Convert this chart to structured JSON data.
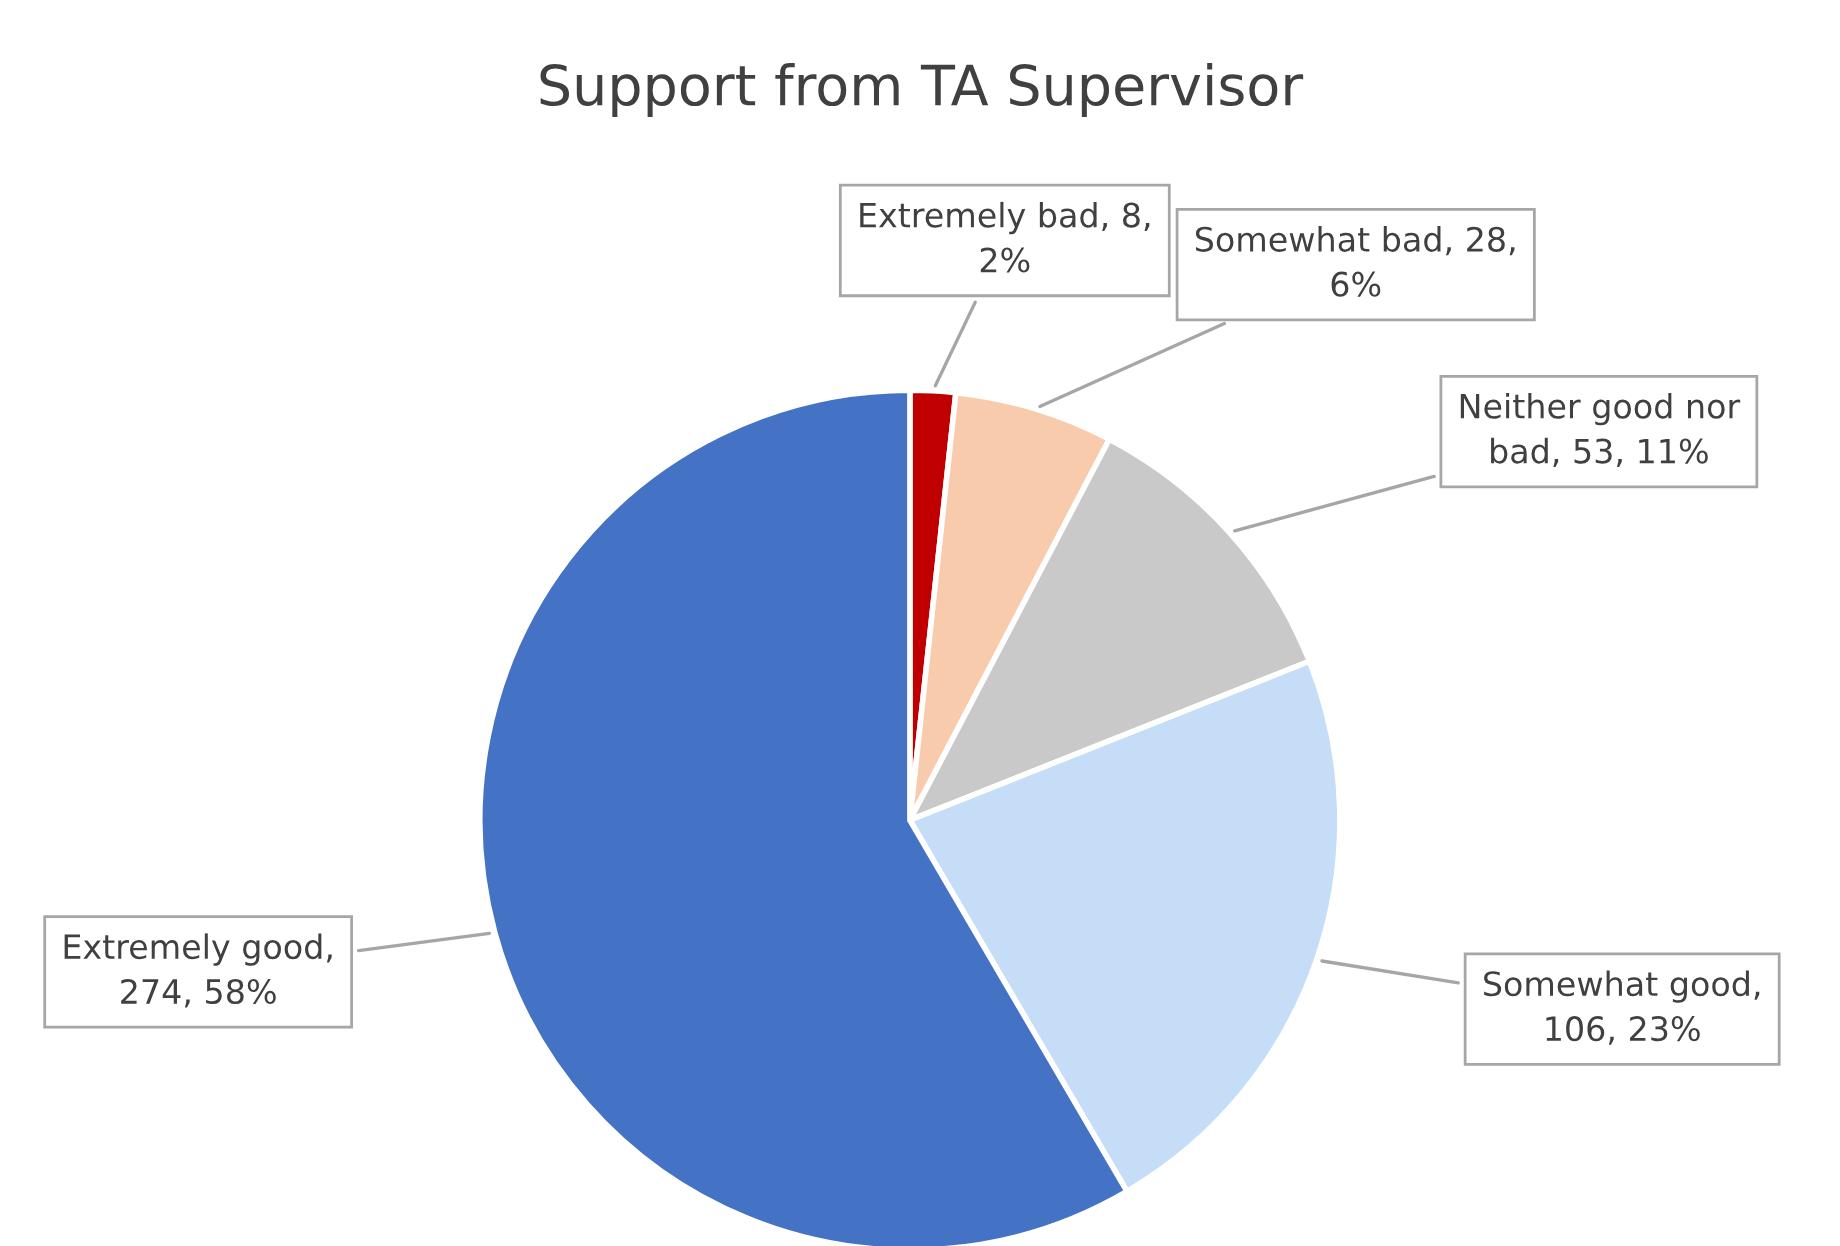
{
  "chart_data": {
    "type": "pie",
    "title": "Support from TA Supervisor",
    "categories": [
      "Extremely bad",
      "Somewhat bad",
      "Neither good nor bad",
      "Somewhat good",
      "Extremely good"
    ],
    "values": [
      8,
      28,
      53,
      106,
      274
    ],
    "colors": [
      "#c00000",
      "#f8cbad",
      "#c9c9c9",
      "#c5ddf6",
      "#4472c4"
    ],
    "value_labels": [
      ", 8, 2%",
      ", 28, 6%",
      ", 53, 11%",
      ", 106, 23%",
      ", 274, 58%"
    ],
    "legend": false
  }
}
